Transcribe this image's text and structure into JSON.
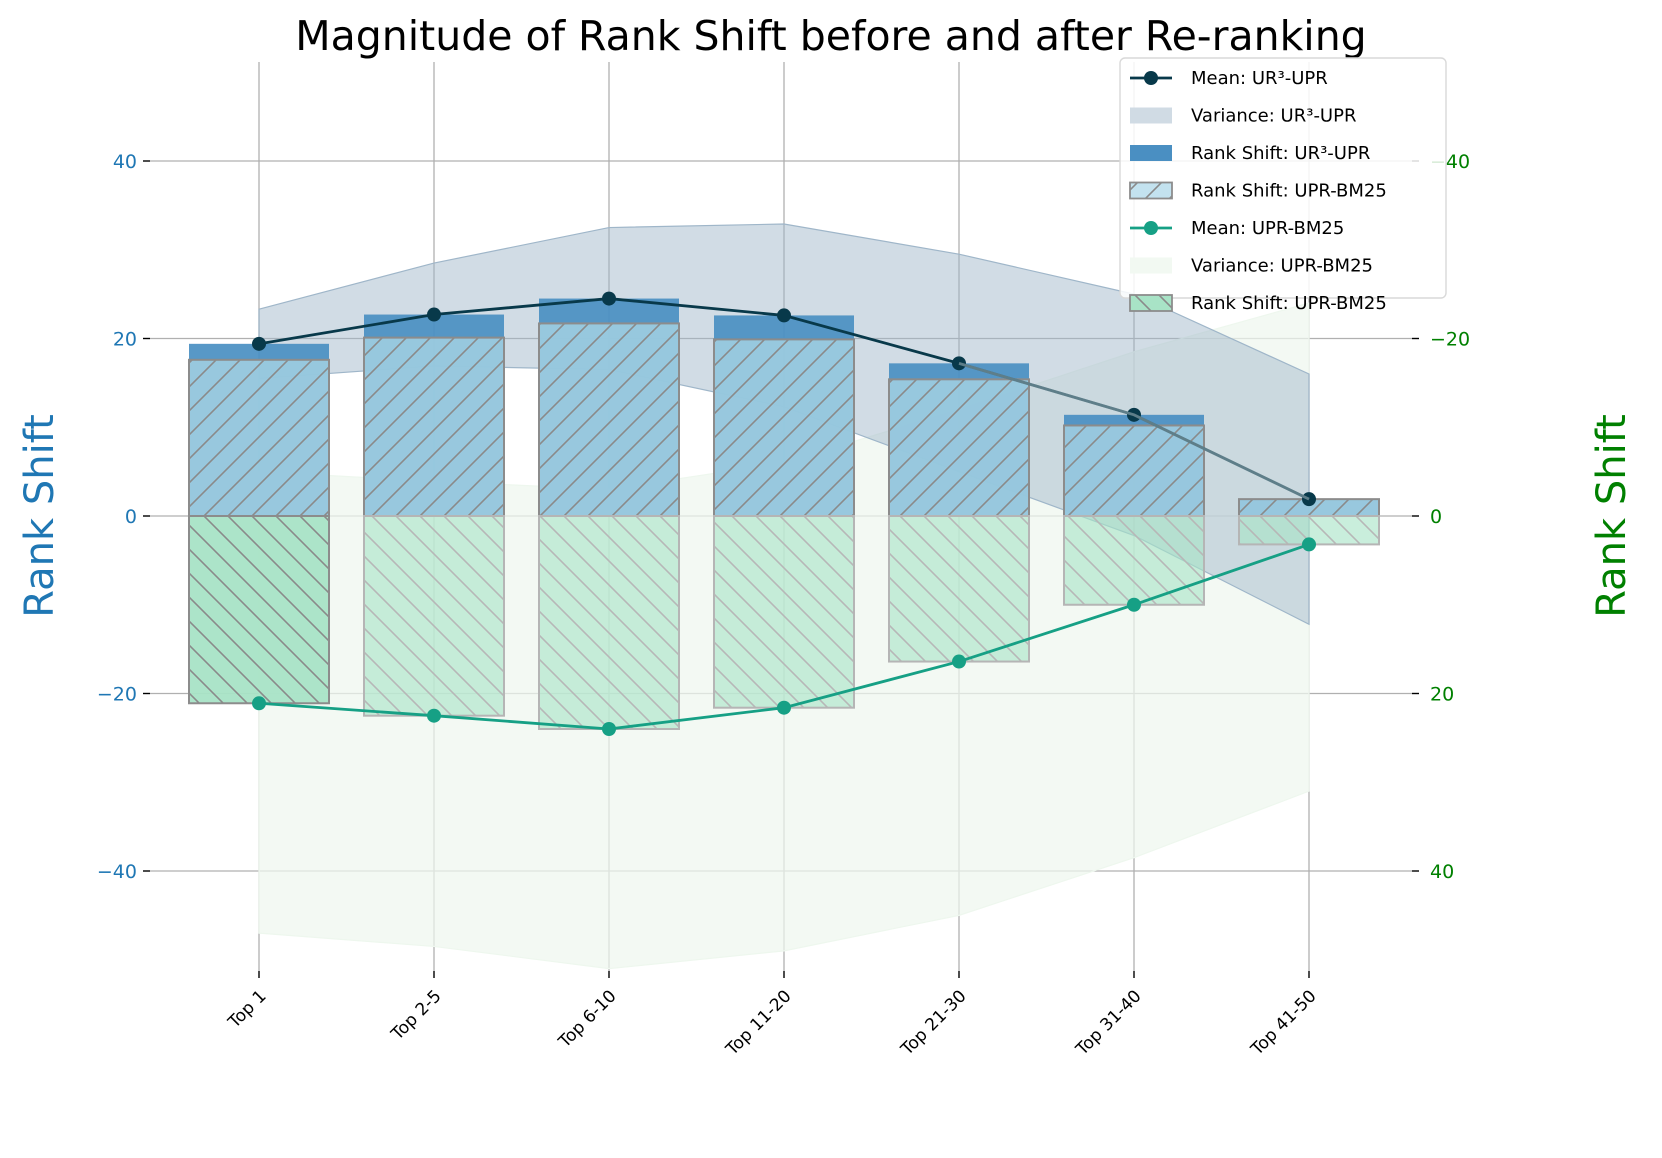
{
  "chart_data": {
    "type": "bar",
    "title": "Magnitude of Rank Shift before and after Re-ranking",
    "ylabel_left": "Rank Shift",
    "ylabel_right": "Rank Shift",
    "categories": [
      "Top 1",
      "Top 2-5",
      "Top 6-10",
      "Top 11-20",
      "Top 21-30",
      "Top 31-40",
      "Top 41-50"
    ],
    "ylim_left": [
      -51,
      51
    ],
    "ylim_right": [
      51,
      -51
    ],
    "right_axis_inverted": true,
    "yticks": [
      -40,
      -20,
      0,
      20,
      40
    ],
    "yticks_left_labels": [
      "−40",
      "−20",
      "0",
      "20",
      "40"
    ],
    "yticks_right_labels": [
      "40",
      "20",
      "0",
      "−20",
      "−40"
    ],
    "grid": true,
    "legend_position": "top-right",
    "series": [
      {
        "name": "Mean: UR³-UPR",
        "kind": "line",
        "axis": "left",
        "color": "#08394a",
        "values": [
          19.4,
          22.7,
          24.5,
          22.6,
          17.2,
          11.4,
          1.9
        ]
      },
      {
        "name": "Variance: UR³-UPR",
        "kind": "band",
        "axis": "left",
        "color": "#9fb6c9",
        "upper": [
          23.3,
          28.5,
          32.5,
          32.9,
          29.5,
          25.0,
          16.0
        ],
        "lower": [
          15.5,
          16.9,
          16.5,
          12.3,
          5.0,
          -2.2,
          -12.2
        ]
      },
      {
        "name": "Rank Shift: UR³-UPR",
        "kind": "bar",
        "axis": "left",
        "color": "#4a8fc2",
        "values": [
          19.4,
          22.7,
          24.5,
          22.6,
          17.2,
          11.4,
          1.9
        ]
      },
      {
        "name": "Rank Shift: UPR-BM25",
        "kind": "bar",
        "axis": "left",
        "hatch": "/",
        "color": "#add8e6",
        "values": [
          17.6,
          20.1,
          21.7,
          19.9,
          15.4,
          10.2,
          1.9
        ]
      },
      {
        "name": "Mean: UPR-BM25",
        "kind": "line",
        "axis": "right",
        "color": "#16a085",
        "values": [
          21.1,
          22.5,
          24.0,
          21.6,
          16.4,
          10.0,
          3.2
        ]
      },
      {
        "name": "Variance: UPR-BM25",
        "kind": "band",
        "axis": "right",
        "color": "#edf7ed",
        "upper": [
          47.0,
          48.5,
          51.0,
          49.0,
          45.0,
          38.5,
          31.0
        ],
        "lower": [
          -5.0,
          -3.9,
          -3.0,
          -6.0,
          -12.0,
          -18.5,
          -24.0
        ]
      },
      {
        "name": "Rank Shift: UPR-BM25",
        "kind": "bar",
        "axis": "right",
        "hatch": "\\",
        "color": "#a8e3c6",
        "values": [
          21.1,
          22.5,
          24.0,
          21.6,
          16.4,
          10.0,
          3.2
        ]
      }
    ]
  },
  "legend": [
    {
      "label": "Mean: UR³-UPR",
      "kind": "line",
      "color": "#08394a"
    },
    {
      "label": "Variance: UR³-UPR",
      "kind": "band",
      "color": "#d0dbe4"
    },
    {
      "label": "Rank Shift: UR³-UPR",
      "kind": "bar",
      "color": "#4a8fc2"
    },
    {
      "label": "Rank Shift: UPR-BM25",
      "kind": "hatch-fwd",
      "color": "#c3e2ef"
    },
    {
      "label": "Mean: UPR-BM25",
      "kind": "line",
      "color": "#16a085"
    },
    {
      "label": "Variance: UPR-BM25",
      "kind": "band",
      "color": "#f2f9f2"
    },
    {
      "label": "Rank Shift: UPR-BM25",
      "kind": "hatch-back",
      "color": "#a8e3c6"
    }
  ]
}
